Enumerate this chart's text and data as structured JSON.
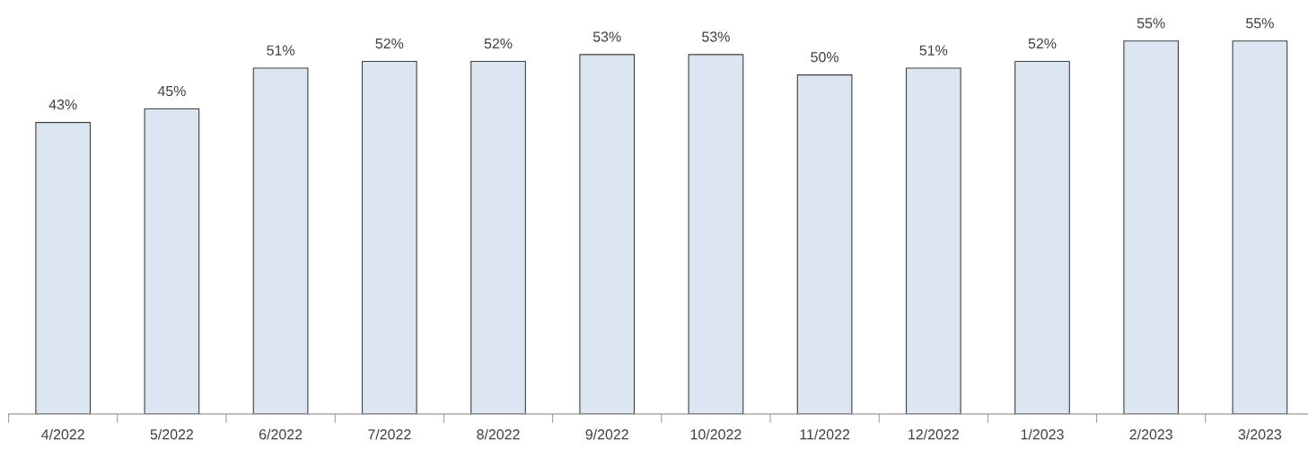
{
  "chart_data": {
    "type": "bar",
    "categories": [
      "4/2022",
      "5/2022",
      "6/2022",
      "7/2022",
      "8/2022",
      "9/2022",
      "10/2022",
      "11/2022",
      "12/2022",
      "1/2023",
      "2/2023",
      "3/2023"
    ],
    "values": [
      43,
      45,
      51,
      52,
      52,
      53,
      53,
      50,
      51,
      52,
      55,
      55
    ],
    "value_labels": [
      "43%",
      "45%",
      "51%",
      "52%",
      "52%",
      "53%",
      "53%",
      "50%",
      "51%",
      "52%",
      "55%",
      "55%"
    ],
    "color": "#dce6f2",
    "tick_labels": "x",
    "grid": false
  }
}
